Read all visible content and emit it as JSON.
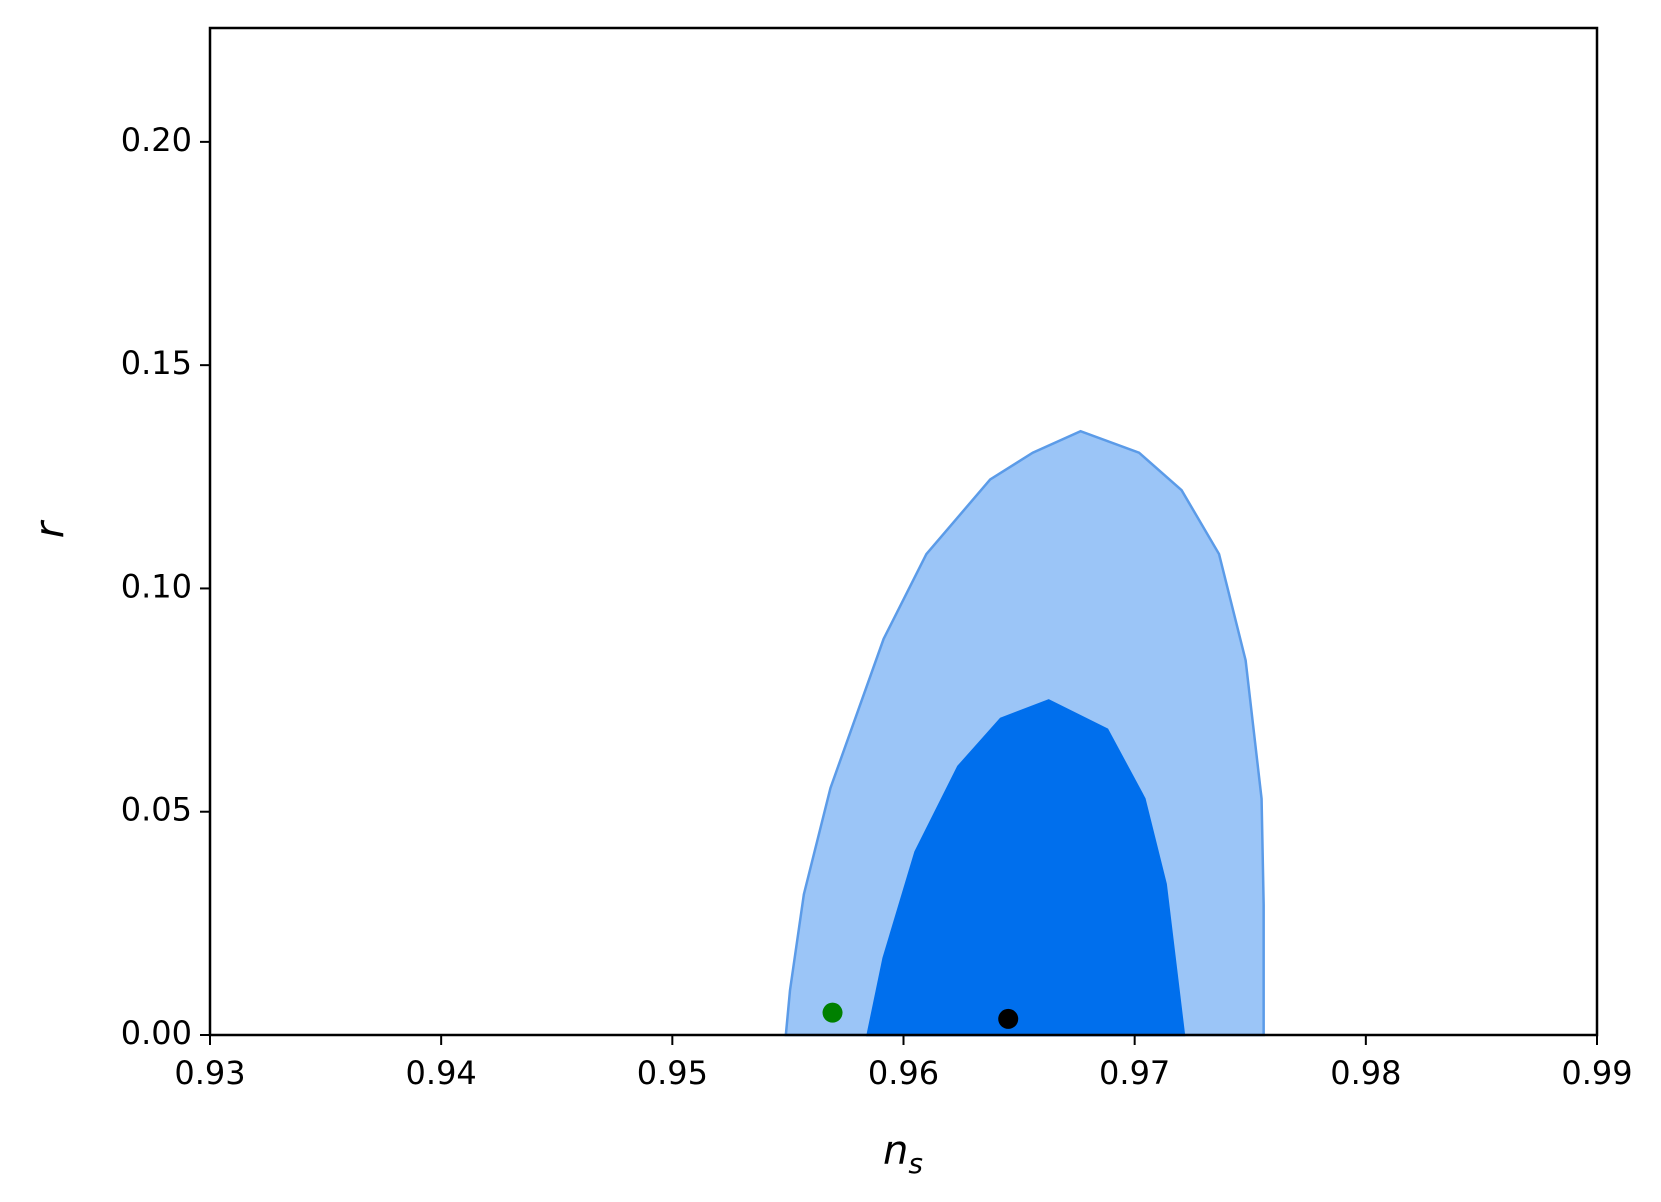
{
  "chart_data": {
    "type": "contour",
    "xlabel": [
      "n",
      "s"
    ],
    "ylabel": "r",
    "xlim": [
      0.93,
      0.99
    ],
    "ylim": [
      0,
      0.2255
    ],
    "xticks": [
      0.93,
      0.94,
      0.95,
      0.96,
      0.97,
      0.98,
      0.99
    ],
    "yticks": [
      {
        "value": 0,
        "label": "0.00"
      },
      0.05,
      {
        "value": 0.1,
        "label": "0.10"
      },
      0.15,
      {
        "value": 0.2,
        "label": "0.20"
      }
    ],
    "regions": [
      {
        "color": "#9bc5f7",
        "edge": "#5b9be8",
        "x": [
          0.95491,
          0.95509,
          0.95569,
          0.95684,
          0.95914,
          0.96099,
          0.96375,
          0.96559,
          0.96766,
          0.97019,
          0.97203,
          0.97365,
          0.9748,
          0.97549,
          0.97558,
          0.97558
        ],
        "y": [
          0,
          0.01,
          0.0315,
          0.0553,
          0.0887,
          0.1077,
          0.1244,
          0.1304,
          0.1352,
          0.1304,
          0.122,
          0.1077,
          0.0839,
          0.0529,
          0.0291,
          0
        ]
      },
      {
        "color": "#006fed",
        "edge": "#006fed",
        "x": [
          0.95845,
          0.95914,
          0.96052,
          0.96237,
          0.96421,
          0.96628,
          0.96881,
          0.97042,
          0.97134,
          0.97213
        ],
        "y": [
          0,
          0.0172,
          0.041,
          0.0601,
          0.0708,
          0.0749,
          0.0684,
          0.0529,
          0.0338,
          0
        ]
      }
    ],
    "points": [
      {
        "color": "#008000",
        "x": 0.95693,
        "y": 0.005
      },
      {
        "color": "#000000",
        "x": 0.96453,
        "y": 0.0036
      }
    ]
  }
}
